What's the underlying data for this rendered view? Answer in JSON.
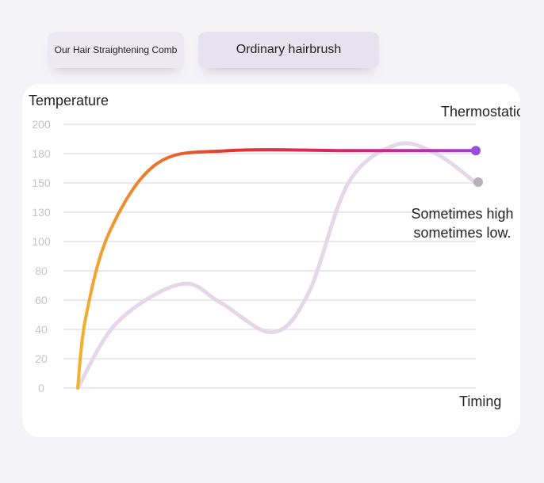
{
  "tabs": [
    {
      "label": "Our Hair Straightening Comb"
    },
    {
      "label": "Ordinary hairbrush"
    }
  ],
  "chart_data": {
    "type": "line",
    "ylabel": "Temperature",
    "xlabel": "Timing",
    "yticks": [
      0,
      20,
      40,
      60,
      80,
      100,
      130,
      150,
      180,
      200
    ],
    "grid": true,
    "series": [
      {
        "name": "Thermostatic",
        "color": "#9b4fd6",
        "gradient": [
          "#f2b233",
          "#ea7a2c",
          "#e3342e",
          "#d2237a",
          "#a53ad9"
        ],
        "points": [
          [
            0,
            0
          ],
          [
            0.02,
            48
          ],
          [
            0.08,
            110
          ],
          [
            0.2,
            170
          ],
          [
            0.38,
            182
          ],
          [
            0.7,
            182
          ],
          [
            1.0,
            182
          ]
        ]
      },
      {
        "name": "Sometimes high sometimes low.",
        "color": "#e5d7ea",
        "end_marker_color": "#b4b2b8",
        "points": [
          [
            0,
            0
          ],
          [
            0.1,
            45
          ],
          [
            0.26,
            71
          ],
          [
            0.36,
            58
          ],
          [
            0.49,
            38
          ],
          [
            0.58,
            65
          ],
          [
            0.68,
            150
          ],
          [
            0.8,
            186
          ],
          [
            0.9,
            180
          ],
          [
            1.0,
            150
          ]
        ]
      }
    ],
    "annotations": [
      {
        "text": "Thermostatic"
      },
      {
        "lines": [
          "Sometimes high",
          "sometimes low."
        ]
      }
    ]
  }
}
